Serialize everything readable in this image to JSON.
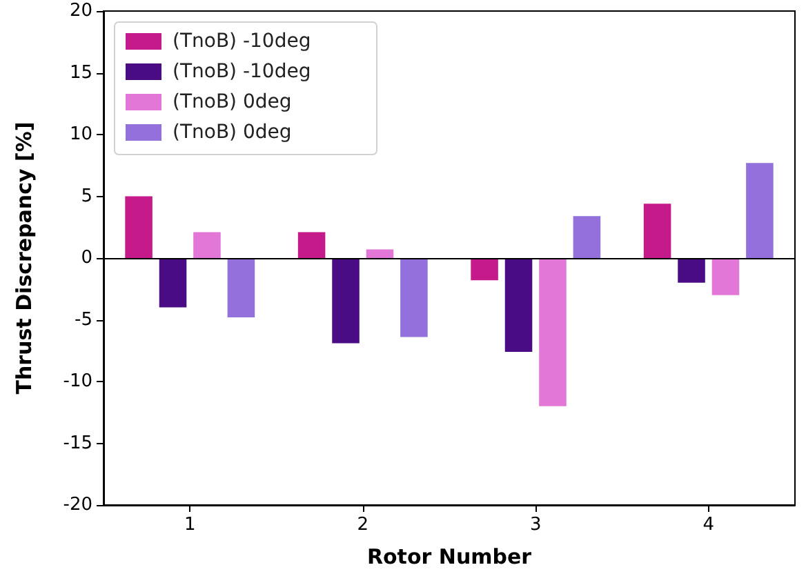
{
  "chart_data": {
    "type": "bar",
    "xlabel": "Rotor Number",
    "ylabel": "Thrust Discrepancy [%]",
    "categories": [
      "1",
      "2",
      "3",
      "4"
    ],
    "series": [
      {
        "name": "(TnoB) -10deg",
        "color": "#c51b8a",
        "values": [
          5.0,
          2.1,
          -1.8,
          4.4
        ]
      },
      {
        "name": "(TnoB) -10deg",
        "color": "#4a0c85",
        "values": [
          -4.0,
          -6.9,
          -7.6,
          -2.0
        ]
      },
      {
        "name": "(TnoB) 0deg",
        "color": "#e377d8",
        "values": [
          2.1,
          0.7,
          -12.0,
          -3.0
        ]
      },
      {
        "name": "(TnoB) 0deg",
        "color": "#9370db",
        "values": [
          -4.8,
          -6.4,
          3.4,
          7.7
        ]
      }
    ],
    "ylim": [
      -20,
      20
    ],
    "yticks": [
      -20,
      -15,
      -10,
      -5,
      0,
      5,
      10,
      15,
      20
    ],
    "legend": "top left"
  }
}
